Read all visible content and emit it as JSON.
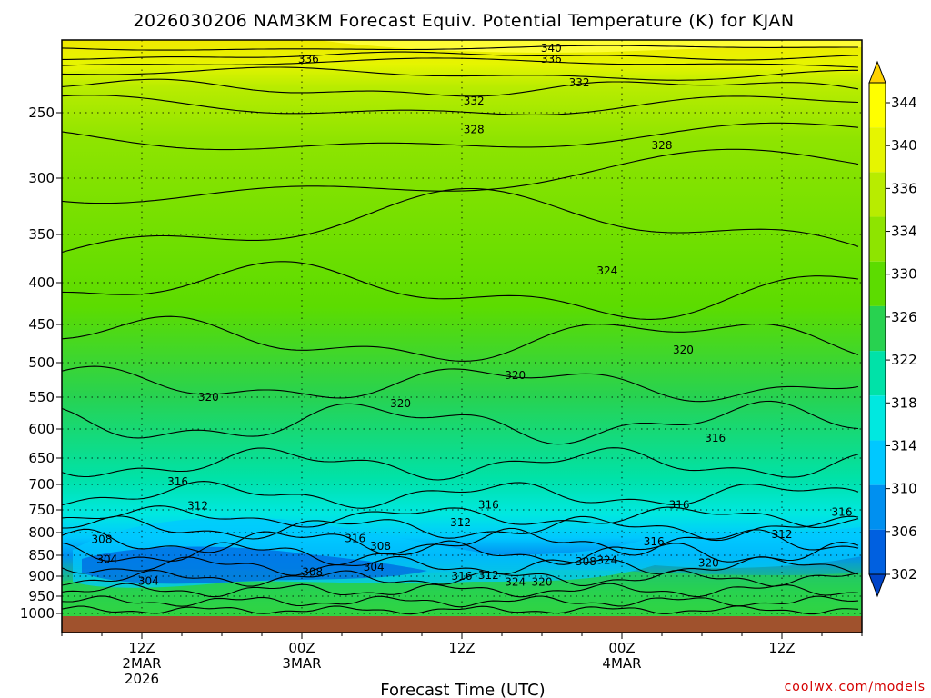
{
  "chart_data": {
    "type": "heatmap",
    "title": "2026030206 NAM3KM Forecast Equiv. Potential Temperature (K) for KJAN",
    "xlabel": "Forecast Time (UTC)",
    "ylabel": "",
    "x_ticks": [
      {
        "hour": 12,
        "lines": [
          "12Z",
          "2MAR",
          "2026"
        ]
      },
      {
        "hour": 24,
        "lines": [
          "00Z",
          "3MAR"
        ]
      },
      {
        "hour": 36,
        "lines": [
          "12Z"
        ]
      },
      {
        "hour": 48,
        "lines": [
          "00Z",
          "4MAR"
        ]
      },
      {
        "hour": 60,
        "lines": [
          "12Z"
        ]
      }
    ],
    "xlim_hours": [
      6,
      66
    ],
    "y_ticks": [
      250,
      300,
      350,
      400,
      450,
      500,
      550,
      600,
      650,
      700,
      750,
      800,
      850,
      900,
      950,
      1000
    ],
    "y_scale": "log-pressure",
    "ylim": [
      1013,
      200
    ],
    "grid": "dotted",
    "colorbar": {
      "labels": [
        344,
        340,
        336,
        334,
        330,
        326,
        322,
        318,
        314,
        310,
        306,
        302
      ],
      "colors": [
        "#ffd200",
        "#ffff00",
        "#e6f500",
        "#b8ec00",
        "#8ee400",
        "#5cdc00",
        "#28d250",
        "#00e2a8",
        "#00e8e0",
        "#00c8ff",
        "#0090f0",
        "#0060e0",
        "#0044c8"
      ]
    },
    "contour_labels": [
      {
        "value": 340,
        "hour": 42.7,
        "p": 205
      },
      {
        "value": 336,
        "hour": 24.5,
        "p": 212
      },
      {
        "value": 336,
        "hour": 42.7,
        "p": 212
      },
      {
        "value": 332,
        "hour": 44.8,
        "p": 228
      },
      {
        "value": 332,
        "hour": 36.9,
        "p": 241
      },
      {
        "value": 328,
        "hour": 36.9,
        "p": 262
      },
      {
        "value": 328,
        "hour": 51.0,
        "p": 274
      },
      {
        "value": 324,
        "hour": 46.9,
        "p": 387
      },
      {
        "value": 320,
        "hour": 52.6,
        "p": 483
      },
      {
        "value": 320,
        "hour": 40.0,
        "p": 518
      },
      {
        "value": 320,
        "hour": 31.4,
        "p": 560
      },
      {
        "value": 320,
        "hour": 17.0,
        "p": 550
      },
      {
        "value": 316,
        "hour": 55.0,
        "p": 615
      },
      {
        "value": 316,
        "hour": 14.7,
        "p": 695
      },
      {
        "value": 316,
        "hour": 38.0,
        "p": 740
      },
      {
        "value": 316,
        "hour": 52.3,
        "p": 740
      },
      {
        "value": 316,
        "hour": 64.5,
        "p": 755
      },
      {
        "value": 312,
        "hour": 16.2,
        "p": 742
      },
      {
        "value": 312,
        "hour": 35.9,
        "p": 778
      },
      {
        "value": 312,
        "hour": 60.0,
        "p": 804
      },
      {
        "value": 316,
        "hour": 28.0,
        "p": 813
      },
      {
        "value": 308,
        "hour": 29.9,
        "p": 830
      },
      {
        "value": 316,
        "hour": 50.4,
        "p": 820
      },
      {
        "value": 308,
        "hour": 9.0,
        "p": 815
      },
      {
        "value": 304,
        "hour": 9.4,
        "p": 860
      },
      {
        "value": 304,
        "hour": 29.4,
        "p": 878
      },
      {
        "value": 308,
        "hour": 24.8,
        "p": 890
      },
      {
        "value": 304,
        "hour": 12.5,
        "p": 912
      },
      {
        "value": 316,
        "hour": 36.0,
        "p": 900
      },
      {
        "value": 312,
        "hour": 38.0,
        "p": 898
      },
      {
        "value": 324,
        "hour": 40.0,
        "p": 915
      },
      {
        "value": 320,
        "hour": 42.0,
        "p": 915
      },
      {
        "value": 308,
        "hour": 45.3,
        "p": 865
      },
      {
        "value": 324,
        "hour": 46.9,
        "p": 862
      },
      {
        "value": 320,
        "hour": 54.5,
        "p": 868
      }
    ]
  },
  "credit": "coolwx.com/models"
}
